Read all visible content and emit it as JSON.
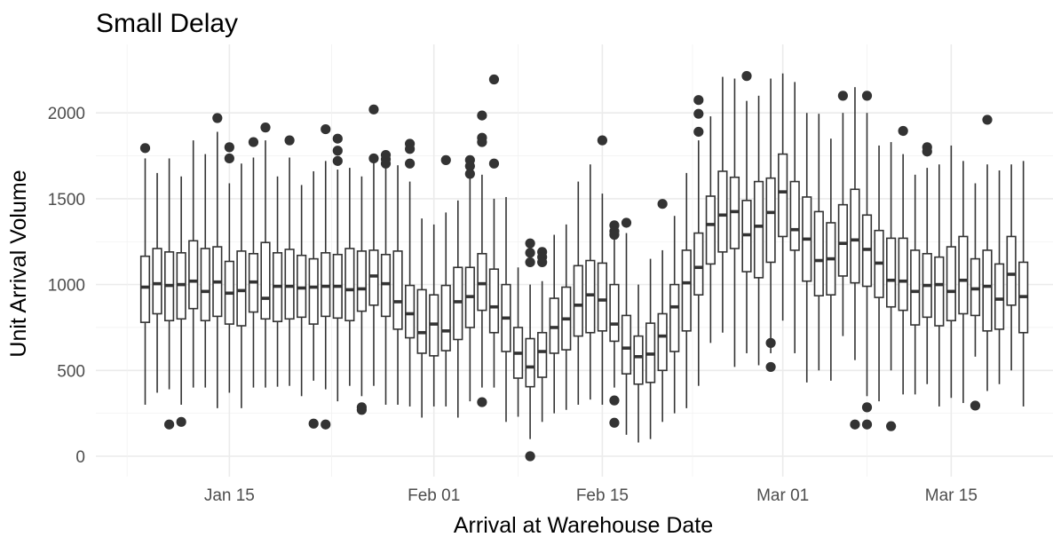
{
  "chart_data": {
    "type": "box",
    "title": "Small Delay",
    "xlabel": "Arrival at Warehouse Date",
    "ylabel": "Unit Arrival Volume",
    "x_start_date": "2024-01-08",
    "x_ticks": [
      {
        "date": "2024-01-15",
        "label": "Jan 15"
      },
      {
        "date": "2024-02-01",
        "label": "Feb 01"
      },
      {
        "date": "2024-02-15",
        "label": "Feb 15"
      },
      {
        "date": "2024-03-01",
        "label": "Mar 01"
      },
      {
        "date": "2024-03-15",
        "label": "Mar 15"
      }
    ],
    "y_ticks": [
      0,
      500,
      1000,
      1500,
      2000
    ],
    "ylim": [
      -50,
      2250
    ],
    "grid": true,
    "box_color": "#333333",
    "boxes": [
      {
        "date": "2024-01-08",
        "whislo": 300,
        "q1": 780,
        "med": 985,
        "q3": 1165,
        "whishi": 1735,
        "fliers": [
          1795
        ]
      },
      {
        "date": "2024-01-09",
        "whislo": 370,
        "q1": 830,
        "med": 1005,
        "q3": 1210,
        "whishi": 1650,
        "fliers": []
      },
      {
        "date": "2024-01-10",
        "whislo": 390,
        "q1": 790,
        "med": 995,
        "q3": 1190,
        "whishi": 1735,
        "fliers": [
          185
        ]
      },
      {
        "date": "2024-01-11",
        "whislo": 300,
        "q1": 800,
        "med": 1000,
        "q3": 1185,
        "whishi": 1630,
        "fliers": [
          200
        ]
      },
      {
        "date": "2024-01-12",
        "whislo": 400,
        "q1": 860,
        "med": 1020,
        "q3": 1255,
        "whishi": 1840,
        "fliers": []
      },
      {
        "date": "2024-01-13",
        "whislo": 400,
        "q1": 790,
        "med": 960,
        "q3": 1210,
        "whishi": 1760,
        "fliers": []
      },
      {
        "date": "2024-01-14",
        "whislo": 280,
        "q1": 815,
        "med": 1015,
        "q3": 1220,
        "whishi": 1890,
        "fliers": [
          1970
        ]
      },
      {
        "date": "2024-01-15",
        "whislo": 370,
        "q1": 770,
        "med": 950,
        "q3": 1135,
        "whishi": 1590,
        "fliers": [
          1800,
          1735
        ]
      },
      {
        "date": "2024-01-16",
        "whislo": 280,
        "q1": 760,
        "med": 965,
        "q3": 1195,
        "whishi": 1705,
        "fliers": []
      },
      {
        "date": "2024-01-17",
        "whislo": 400,
        "q1": 840,
        "med": 1015,
        "q3": 1180,
        "whishi": 1740,
        "fliers": [
          1830
        ]
      },
      {
        "date": "2024-01-18",
        "whislo": 400,
        "q1": 800,
        "med": 920,
        "q3": 1245,
        "whishi": 1840,
        "fliers": [
          1915
        ]
      },
      {
        "date": "2024-01-19",
        "whislo": 405,
        "q1": 785,
        "med": 990,
        "q3": 1185,
        "whishi": 1630,
        "fliers": []
      },
      {
        "date": "2024-01-20",
        "whislo": 410,
        "q1": 800,
        "med": 990,
        "q3": 1205,
        "whishi": 1740,
        "fliers": [
          1840
        ]
      },
      {
        "date": "2024-01-21",
        "whislo": 350,
        "q1": 810,
        "med": 980,
        "q3": 1170,
        "whishi": 1580,
        "fliers": []
      },
      {
        "date": "2024-01-22",
        "whislo": 440,
        "q1": 770,
        "med": 985,
        "q3": 1150,
        "whishi": 1660,
        "fliers": [
          190
        ]
      },
      {
        "date": "2024-01-23",
        "whislo": 390,
        "q1": 815,
        "med": 990,
        "q3": 1185,
        "whishi": 1720,
        "fliers": [
          1905,
          185
        ]
      },
      {
        "date": "2024-01-24",
        "whislo": 320,
        "q1": 805,
        "med": 990,
        "q3": 1175,
        "whishi": 1670,
        "fliers": [
          1850,
          1780,
          1720
        ]
      },
      {
        "date": "2024-01-25",
        "whislo": 410,
        "q1": 790,
        "med": 970,
        "q3": 1210,
        "whishi": 1680,
        "fliers": []
      },
      {
        "date": "2024-01-26",
        "whislo": 350,
        "q1": 845,
        "med": 975,
        "q3": 1195,
        "whishi": 1630,
        "fliers": [
          285,
          270
        ]
      },
      {
        "date": "2024-01-27",
        "whislo": 410,
        "q1": 880,
        "med": 1050,
        "q3": 1200,
        "whishi": 1710,
        "fliers": [
          2020,
          1735
        ]
      },
      {
        "date": "2024-01-28",
        "whislo": 300,
        "q1": 815,
        "med": 1005,
        "q3": 1175,
        "whishi": 1680,
        "fliers": [
          1755,
          1730,
          1705
        ]
      },
      {
        "date": "2024-01-29",
        "whislo": 300,
        "q1": 740,
        "med": 900,
        "q3": 1195,
        "whishi": 1695,
        "fliers": []
      },
      {
        "date": "2024-01-30",
        "whislo": 290,
        "q1": 690,
        "med": 830,
        "q3": 995,
        "whishi": 1600,
        "fliers": [
          1820,
          1790,
          1705
        ]
      },
      {
        "date": "2024-01-31",
        "whislo": 225,
        "q1": 600,
        "med": 720,
        "q3": 970,
        "whishi": 1385,
        "fliers": []
      },
      {
        "date": "2024-02-01",
        "whislo": 290,
        "q1": 585,
        "med": 770,
        "q3": 940,
        "whishi": 1350,
        "fliers": []
      },
      {
        "date": "2024-02-02",
        "whislo": 290,
        "q1": 615,
        "med": 730,
        "q3": 995,
        "whishi": 1420,
        "fliers": [
          1725
        ]
      },
      {
        "date": "2024-02-03",
        "whislo": 225,
        "q1": 680,
        "med": 900,
        "q3": 1100,
        "whishi": 1490,
        "fliers": []
      },
      {
        "date": "2024-02-04",
        "whislo": 320,
        "q1": 750,
        "med": 930,
        "q3": 1100,
        "whishi": 1620,
        "fliers": [
          1725,
          1690,
          1645
        ]
      },
      {
        "date": "2024-02-05",
        "whislo": 400,
        "q1": 850,
        "med": 1005,
        "q3": 1180,
        "whishi": 1640,
        "fliers": [
          1985,
          1855,
          1830,
          315
        ]
      },
      {
        "date": "2024-02-06",
        "whislo": 400,
        "q1": 720,
        "med": 870,
        "q3": 1090,
        "whishi": 1500,
        "fliers": [
          2195,
          1705
        ]
      },
      {
        "date": "2024-02-07",
        "whislo": 200,
        "q1": 610,
        "med": 805,
        "q3": 1000,
        "whishi": 1510,
        "fliers": []
      },
      {
        "date": "2024-02-08",
        "whislo": 230,
        "q1": 455,
        "med": 600,
        "q3": 750,
        "whishi": 1100,
        "fliers": []
      },
      {
        "date": "2024-02-09",
        "whislo": 100,
        "q1": 405,
        "med": 520,
        "q3": 685,
        "whishi": 1000,
        "fliers": [
          1240,
          1185,
          1130,
          0
        ]
      },
      {
        "date": "2024-02-10",
        "whislo": 200,
        "q1": 460,
        "med": 610,
        "q3": 720,
        "whishi": 1020,
        "fliers": [
          1190,
          1160,
          1130
        ]
      },
      {
        "date": "2024-02-11",
        "whislo": 250,
        "q1": 600,
        "med": 750,
        "q3": 920,
        "whishi": 1290,
        "fliers": []
      },
      {
        "date": "2024-02-12",
        "whislo": 270,
        "q1": 620,
        "med": 800,
        "q3": 985,
        "whishi": 1350,
        "fliers": []
      },
      {
        "date": "2024-02-13",
        "whislo": 300,
        "q1": 700,
        "med": 880,
        "q3": 1110,
        "whishi": 1600,
        "fliers": []
      },
      {
        "date": "2024-02-14",
        "whislo": 330,
        "q1": 720,
        "med": 940,
        "q3": 1140,
        "whishi": 1700,
        "fliers": []
      },
      {
        "date": "2024-02-15",
        "whislo": 300,
        "q1": 730,
        "med": 910,
        "q3": 1125,
        "whishi": 1530,
        "fliers": [
          1840
        ]
      },
      {
        "date": "2024-02-16",
        "whislo": 400,
        "q1": 670,
        "med": 770,
        "q3": 1000,
        "whishi": 1280,
        "fliers": [
          1345,
          1310,
          1290,
          325,
          195
        ]
      },
      {
        "date": "2024-02-17",
        "whislo": 125,
        "q1": 480,
        "med": 630,
        "q3": 820,
        "whishi": 1300,
        "fliers": [
          1360
        ]
      },
      {
        "date": "2024-02-18",
        "whislo": 80,
        "q1": 420,
        "med": 580,
        "q3": 700,
        "whishi": 1000,
        "fliers": []
      },
      {
        "date": "2024-02-19",
        "whislo": 100,
        "q1": 430,
        "med": 595,
        "q3": 775,
        "whishi": 1150,
        "fliers": []
      },
      {
        "date": "2024-02-20",
        "whislo": 200,
        "q1": 500,
        "med": 700,
        "q3": 830,
        "whishi": 1200,
        "fliers": [
          1470
        ]
      },
      {
        "date": "2024-02-21",
        "whislo": 250,
        "q1": 610,
        "med": 870,
        "q3": 1000,
        "whishi": 1400,
        "fliers": []
      },
      {
        "date": "2024-02-22",
        "whislo": 280,
        "q1": 730,
        "med": 1010,
        "q3": 1200,
        "whishi": 1650,
        "fliers": []
      },
      {
        "date": "2024-02-23",
        "whislo": 410,
        "q1": 940,
        "med": 1100,
        "q3": 1300,
        "whishi": 1840,
        "fliers": [
          2075,
          1995,
          1890
        ]
      },
      {
        "date": "2024-02-24",
        "whislo": 660,
        "q1": 1120,
        "med": 1350,
        "q3": 1515,
        "whishi": 1980,
        "fliers": []
      },
      {
        "date": "2024-02-25",
        "whislo": 720,
        "q1": 1190,
        "med": 1405,
        "q3": 1660,
        "whishi": 2210,
        "fliers": []
      },
      {
        "date": "2024-02-26",
        "whislo": 520,
        "q1": 1210,
        "med": 1425,
        "q3": 1625,
        "whishi": 2200,
        "fliers": []
      },
      {
        "date": "2024-02-27",
        "whislo": 600,
        "q1": 1075,
        "med": 1290,
        "q3": 1490,
        "whishi": 2070,
        "fliers": [
          2215
        ]
      },
      {
        "date": "2024-02-28",
        "whislo": 530,
        "q1": 1040,
        "med": 1340,
        "q3": 1600,
        "whishi": 2100,
        "fliers": []
      },
      {
        "date": "2024-02-29",
        "whislo": 600,
        "q1": 1130,
        "med": 1420,
        "q3": 1620,
        "whishi": 2200,
        "fliers": [
          660,
          520
        ]
      },
      {
        "date": "2024-03-01",
        "whislo": 790,
        "q1": 1280,
        "med": 1540,
        "q3": 1760,
        "whishi": 2230,
        "fliers": []
      },
      {
        "date": "2024-03-02",
        "whislo": 600,
        "q1": 1200,
        "med": 1320,
        "q3": 1600,
        "whishi": 2180,
        "fliers": []
      },
      {
        "date": "2024-03-03",
        "whislo": 430,
        "q1": 1020,
        "med": 1265,
        "q3": 1510,
        "whishi": 2000,
        "fliers": []
      },
      {
        "date": "2024-03-04",
        "whislo": 500,
        "q1": 935,
        "med": 1140,
        "q3": 1425,
        "whishi": 1995,
        "fliers": []
      },
      {
        "date": "2024-03-05",
        "whislo": 440,
        "q1": 940,
        "med": 1150,
        "q3": 1360,
        "whishi": 1850,
        "fliers": []
      },
      {
        "date": "2024-03-06",
        "whislo": 700,
        "q1": 1050,
        "med": 1240,
        "q3": 1465,
        "whishi": 2000,
        "fliers": [
          2100
        ]
      },
      {
        "date": "2024-03-07",
        "whislo": 560,
        "q1": 1010,
        "med": 1260,
        "q3": 1555,
        "whishi": 2150,
        "fliers": [
          185
        ]
      },
      {
        "date": "2024-03-08",
        "whislo": 350,
        "q1": 990,
        "med": 1205,
        "q3": 1405,
        "whishi": 2000,
        "fliers": [
          2100,
          285,
          185
        ]
      },
      {
        "date": "2024-03-09",
        "whislo": 320,
        "q1": 925,
        "med": 1125,
        "q3": 1315,
        "whishi": 1810,
        "fliers": []
      },
      {
        "date": "2024-03-10",
        "whislo": 500,
        "q1": 870,
        "med": 1025,
        "q3": 1270,
        "whishi": 1830,
        "fliers": [
          175
        ]
      },
      {
        "date": "2024-03-11",
        "whislo": 360,
        "q1": 850,
        "med": 1020,
        "q3": 1270,
        "whishi": 1760,
        "fliers": [
          1895
        ]
      },
      {
        "date": "2024-03-12",
        "whislo": 360,
        "q1": 765,
        "med": 960,
        "q3": 1200,
        "whishi": 1640,
        "fliers": []
      },
      {
        "date": "2024-03-13",
        "whislo": 420,
        "q1": 810,
        "med": 995,
        "q3": 1180,
        "whishi": 1680,
        "fliers": [
          1800,
          1775
        ]
      },
      {
        "date": "2024-03-14",
        "whislo": 290,
        "q1": 760,
        "med": 1000,
        "q3": 1160,
        "whishi": 1700,
        "fliers": []
      },
      {
        "date": "2024-03-15",
        "whislo": 340,
        "q1": 790,
        "med": 960,
        "q3": 1220,
        "whishi": 1810,
        "fliers": []
      },
      {
        "date": "2024-03-16",
        "whislo": 310,
        "q1": 830,
        "med": 1025,
        "q3": 1280,
        "whishi": 1720,
        "fliers": []
      },
      {
        "date": "2024-03-17",
        "whislo": 580,
        "q1": 820,
        "med": 975,
        "q3": 1150,
        "whishi": 1590,
        "fliers": [
          295
        ]
      },
      {
        "date": "2024-03-18",
        "whislo": 380,
        "q1": 730,
        "med": 990,
        "q3": 1200,
        "whishi": 1700,
        "fliers": [
          1960
        ]
      },
      {
        "date": "2024-03-19",
        "whislo": 420,
        "q1": 740,
        "med": 915,
        "q3": 1120,
        "whishi": 1665,
        "fliers": []
      },
      {
        "date": "2024-03-20",
        "whislo": 500,
        "q1": 880,
        "med": 1060,
        "q3": 1280,
        "whishi": 1700,
        "fliers": []
      },
      {
        "date": "2024-03-21",
        "whislo": 290,
        "q1": 720,
        "med": 930,
        "q3": 1130,
        "whishi": 1720,
        "fliers": []
      }
    ]
  }
}
